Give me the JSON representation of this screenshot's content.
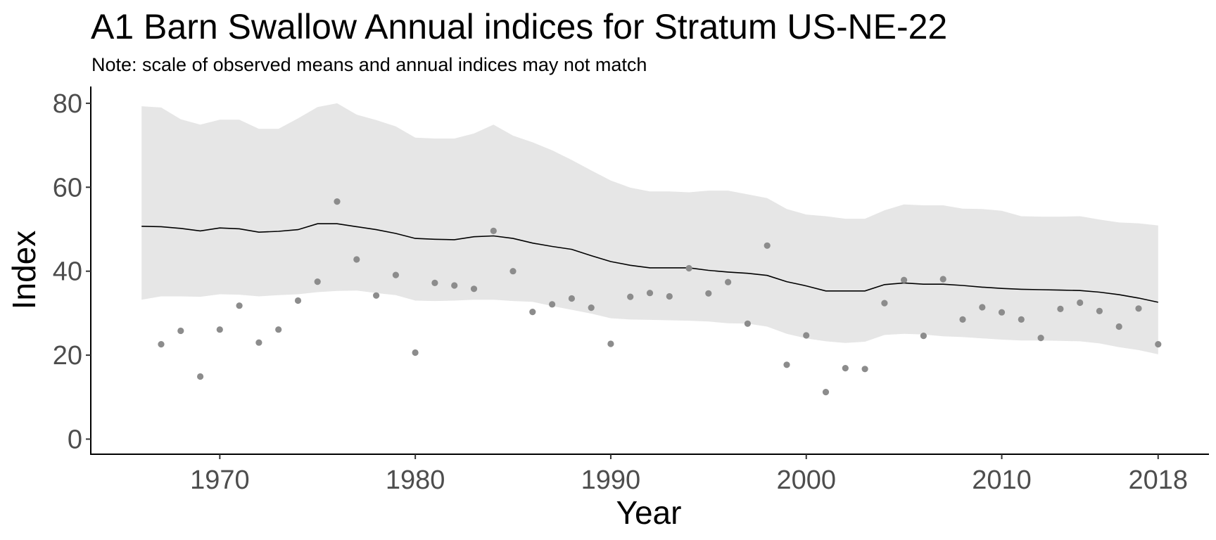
{
  "chart_data": {
    "type": "line",
    "title": "A1 Barn Swallow Annual indices for Stratum US-NE-22",
    "subtitle": "Note: scale of observed means and annual indices may not match",
    "xlabel": "Year",
    "ylabel": "Index",
    "xlim": [
      1963.4,
      1920.6
    ],
    "ylim": [
      -3.6,
      84
    ],
    "x_ticks": [
      1970,
      1980,
      1990,
      2000,
      2010,
      2018
    ],
    "y_ticks": [
      0,
      20,
      40,
      60,
      80
    ],
    "grid": false,
    "legend": "none",
    "colors": {
      "ribbon": "#e6e6e6",
      "line": "#000000",
      "points": "#8c8c8c",
      "axis": "#000000",
      "tick_text": "#4d4d4d"
    },
    "years": [
      1966,
      1967,
      1968,
      1969,
      1970,
      1971,
      1972,
      1973,
      1974,
      1975,
      1976,
      1977,
      1978,
      1979,
      1980,
      1981,
      1982,
      1983,
      1984,
      1985,
      1986,
      1987,
      1988,
      1989,
      1990,
      1991,
      1992,
      1993,
      1994,
      1995,
      1996,
      1997,
      1998,
      1999,
      2000,
      2001,
      2002,
      2003,
      2004,
      2005,
      2006,
      2007,
      2008,
      2009,
      2010,
      2011,
      2012,
      2013,
      2014,
      2015,
      2016,
      2017,
      2018
    ],
    "series": [
      {
        "type": "line",
        "values": [
          50.7,
          50.6,
          50.2,
          49.6,
          50.3,
          50.1,
          49.3,
          49.5,
          49.9,
          51.3,
          51.3,
          50.6,
          49.9,
          49.0,
          47.8,
          47.6,
          47.5,
          48.2,
          48.4,
          47.8,
          46.7,
          45.9,
          45.2,
          43.7,
          42.3,
          41.4,
          40.8,
          40.8,
          40.8,
          40.2,
          39.8,
          39.5,
          39.0,
          37.5,
          36.5,
          35.3,
          35.3,
          35.3,
          36.8,
          37.2,
          36.9,
          36.9,
          36.6,
          36.2,
          35.9,
          35.7,
          35.6,
          35.5,
          35.4,
          35.0,
          34.4,
          33.6,
          32.6
        ]
      },
      {
        "type": "ribbon",
        "lower": [
          33.2,
          34.0,
          34.0,
          33.9,
          34.5,
          34.4,
          34.0,
          34.3,
          34.5,
          35.0,
          35.3,
          35.4,
          34.8,
          34.3,
          33.0,
          32.9,
          33.0,
          33.2,
          33.2,
          32.9,
          32.7,
          31.7,
          30.8,
          29.9,
          28.8,
          28.5,
          28.4,
          28.3,
          28.2,
          28.0,
          27.6,
          27.5,
          26.8,
          25.1,
          24.0,
          23.3,
          22.9,
          23.2,
          24.8,
          25.1,
          24.9,
          24.5,
          24.3,
          24.0,
          23.7,
          23.5,
          23.5,
          23.4,
          23.3,
          22.8,
          21.9,
          21.2,
          20.2
        ],
        "upper": [
          79.3,
          79.0,
          76.2,
          74.9,
          76.1,
          76.1,
          73.9,
          73.9,
          76.4,
          79.1,
          80.0,
          77.3,
          76.0,
          74.5,
          71.8,
          71.6,
          71.6,
          72.8,
          74.9,
          72.3,
          70.7,
          68.8,
          66.5,
          64.0,
          61.6,
          59.9,
          59.0,
          59.0,
          58.8,
          59.2,
          59.2,
          58.3,
          57.4,
          54.8,
          53.5,
          53.1,
          52.5,
          52.5,
          54.5,
          55.9,
          55.7,
          55.7,
          54.9,
          54.8,
          54.4,
          53.1,
          53.0,
          53.0,
          53.1,
          52.3,
          51.6,
          51.4,
          50.9
        ]
      },
      {
        "type": "scatter",
        "x": [
          1967,
          1968,
          1969,
          1970,
          1971,
          1972,
          1973,
          1974,
          1975,
          1976,
          1977,
          1978,
          1979,
          1980,
          1981,
          1982,
          1983,
          1984,
          1985,
          1986,
          1987,
          1988,
          1989,
          1990,
          1991,
          1992,
          1993,
          1994,
          1995,
          1996,
          1997,
          1998,
          1999,
          2000,
          2001,
          2002,
          2003,
          2004,
          2005,
          2006,
          2007,
          2008,
          2009,
          2010,
          2011,
          2012,
          2013,
          2014,
          2015,
          2016,
          2017,
          2018
        ],
        "values": [
          22.6,
          25.8,
          14.9,
          26.1,
          31.8,
          23.0,
          26.1,
          33.0,
          37.5,
          56.6,
          42.8,
          34.2,
          39.1,
          20.6,
          37.2,
          36.6,
          35.8,
          49.6,
          40.0,
          30.3,
          32.1,
          33.5,
          31.3,
          22.7,
          33.9,
          34.8,
          34.0,
          40.7,
          34.7,
          37.4,
          27.5,
          46.1,
          17.7,
          24.7,
          11.2,
          16.9,
          16.7,
          32.4,
          37.9,
          24.6,
          38.1,
          28.5,
          31.4,
          30.2,
          28.5,
          24.1,
          31.0,
          32.5,
          30.5,
          26.8,
          31.1,
          22.6
        ]
      }
    ]
  }
}
